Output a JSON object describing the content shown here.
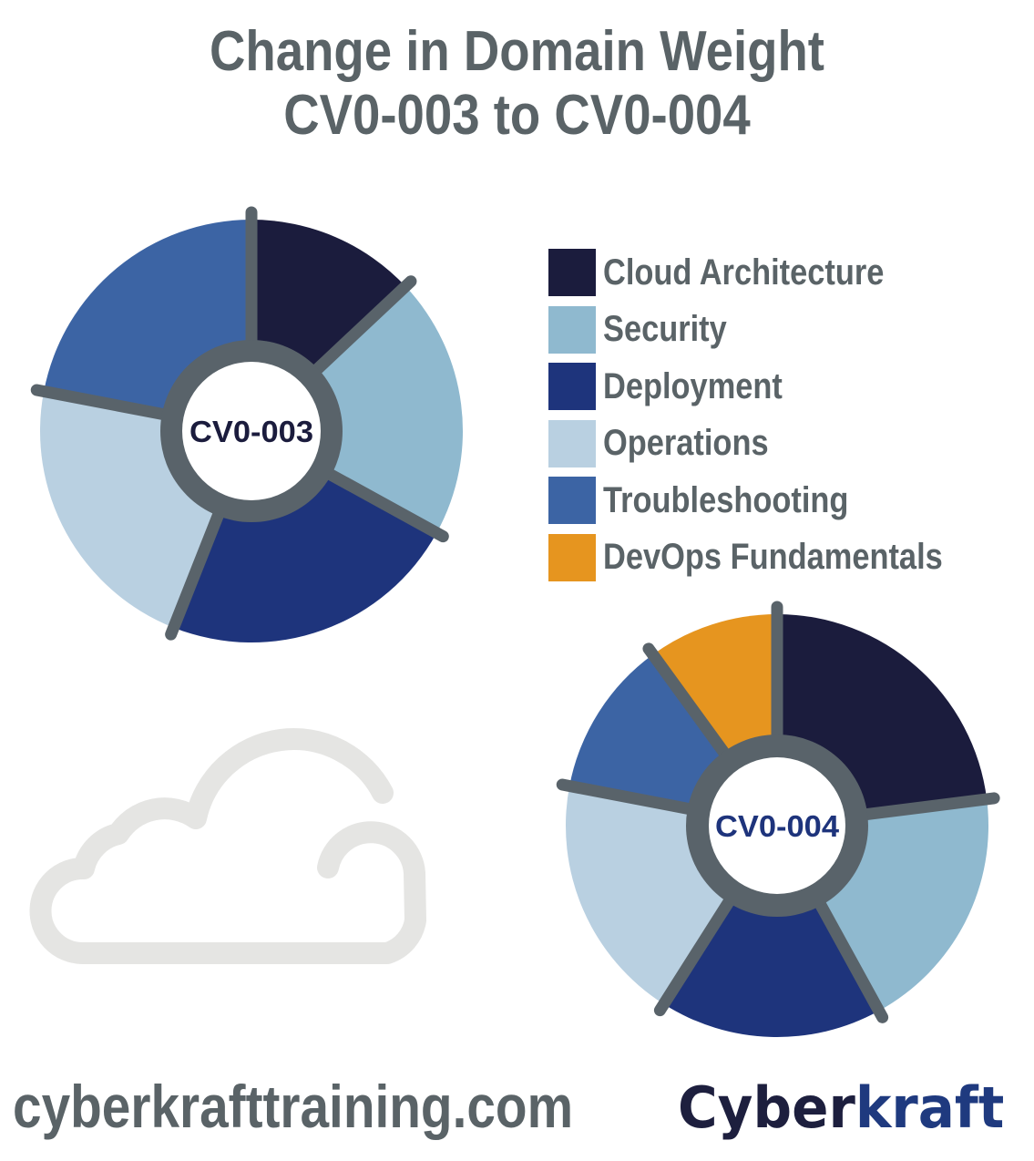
{
  "title": {
    "line1": "Change in Domain Weight",
    "line2": "CV0-003 to CV0-004"
  },
  "colors": {
    "Cloud Architecture": "#1b1c3d",
    "Security": "#8fb9cf",
    "Deployment": "#1e347c",
    "Operations": "#b9d0e1",
    "Troubleshooting": "#3c64a4",
    "DevOps Fundamentals": "#e6951f",
    "divider": "#59636a"
  },
  "legend": [
    {
      "label": "Cloud Architecture"
    },
    {
      "label": "Security"
    },
    {
      "label": "Deployment"
    },
    {
      "label": "Operations"
    },
    {
      "label": "Troubleshooting"
    },
    {
      "label": "DevOps Fundamentals"
    }
  ],
  "chart_data": [
    {
      "type": "pie",
      "center_label": "CV0-003",
      "categories": [
        "Cloud Architecture",
        "Security",
        "Deployment",
        "Operations",
        "Troubleshooting"
      ],
      "values": [
        13,
        20,
        23,
        22,
        22
      ]
    },
    {
      "type": "pie",
      "center_label": "CV0-004",
      "categories": [
        "Cloud Architecture",
        "Security",
        "Deployment",
        "Operations",
        "Troubleshooting",
        "DevOps Fundamentals"
      ],
      "values": [
        23,
        19,
        17,
        19,
        12,
        10
      ]
    }
  ],
  "footer": {
    "url": "cyberkrafttraining.com",
    "brand_part1": "Cyber",
    "brand_part2": "kraft"
  },
  "decor": {
    "cloud_icon": "cloud-icon"
  }
}
